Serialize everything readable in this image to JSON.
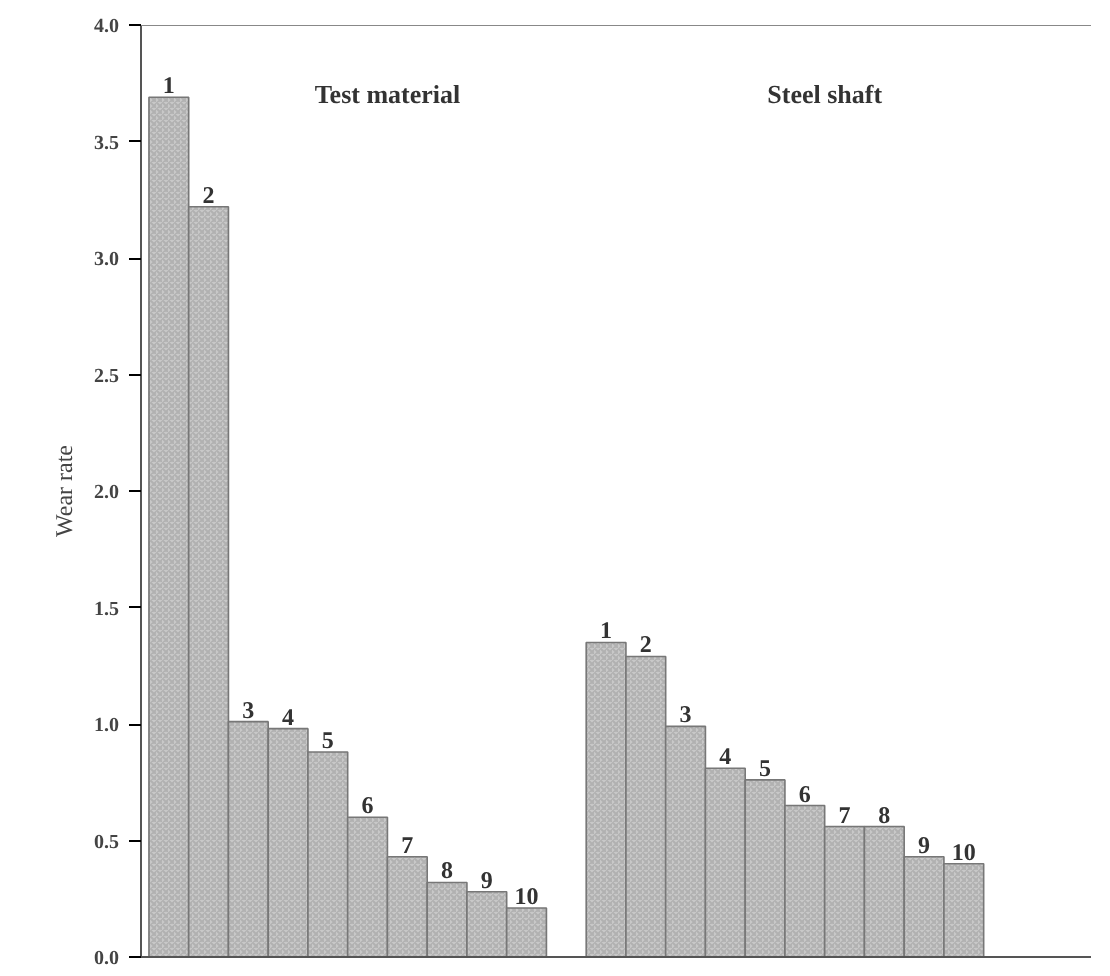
{
  "chart_data": {
    "type": "bar",
    "ylabel": "Wear rate",
    "categories": [
      "1",
      "2",
      "3",
      "4",
      "5",
      "6",
      "7",
      "8",
      "9",
      "10",
      null,
      "1",
      "2",
      "3",
      "4",
      "5",
      "6",
      "7",
      "8",
      "9",
      "10"
    ],
    "values": [
      3.69,
      3.22,
      1.01,
      0.98,
      0.88,
      0.6,
      0.43,
      0.32,
      0.28,
      0.21,
      null,
      1.35,
      1.29,
      0.99,
      0.81,
      0.76,
      0.65,
      0.56,
      0.56,
      0.43,
      0.4
    ],
    "color": "#c8c8c8",
    "ylim": [
      0,
      4
    ],
    "yticks": [
      {
        "value": 0,
        "label": "0.0"
      },
      {
        "value": 0.5,
        "label": "0.5"
      },
      {
        "value": 1,
        "label": "1.0"
      },
      {
        "value": 1.5,
        "label": "1.5"
      },
      {
        "value": 2,
        "label": "2.0"
      },
      {
        "value": 2.5,
        "label": "2.5"
      },
      {
        "value": 3,
        "label": "3.0"
      },
      {
        "value": 3.5,
        "label": "3.5"
      },
      {
        "value": 4,
        "label": "4.0"
      }
    ],
    "annotations": [
      "Test material",
      "Steel shaft"
    ],
    "grid": false
  }
}
